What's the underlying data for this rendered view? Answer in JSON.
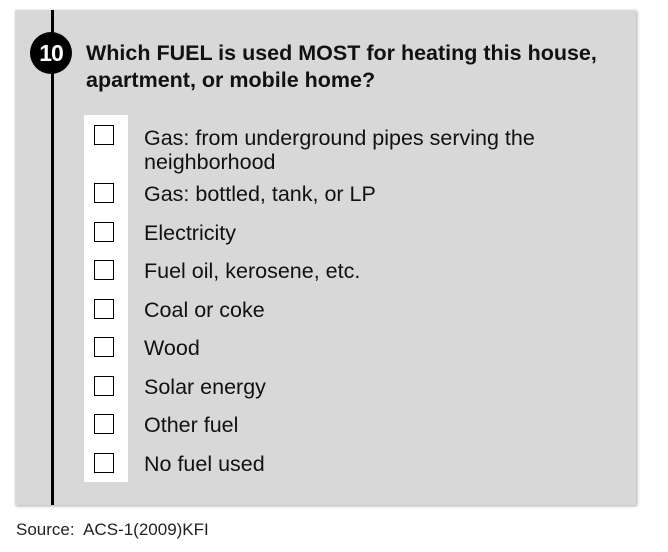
{
  "question": {
    "number": "10",
    "text": "Which FUEL is used MOST for heating this house, apartment, or mobile home?"
  },
  "options": [
    {
      "label": "Gas: from underground pipes serving the neighborhood"
    },
    {
      "label": "Gas: bottled, tank, or LP"
    },
    {
      "label": "Electricity"
    },
    {
      "label": "Fuel oil, kerosene, etc."
    },
    {
      "label": "Coal or coke"
    },
    {
      "label": "Wood"
    },
    {
      "label": "Solar energy"
    },
    {
      "label": "Other fuel"
    },
    {
      "label": "No fuel used"
    }
  ],
  "source": "Source:  ACS-1(2009)KFI"
}
